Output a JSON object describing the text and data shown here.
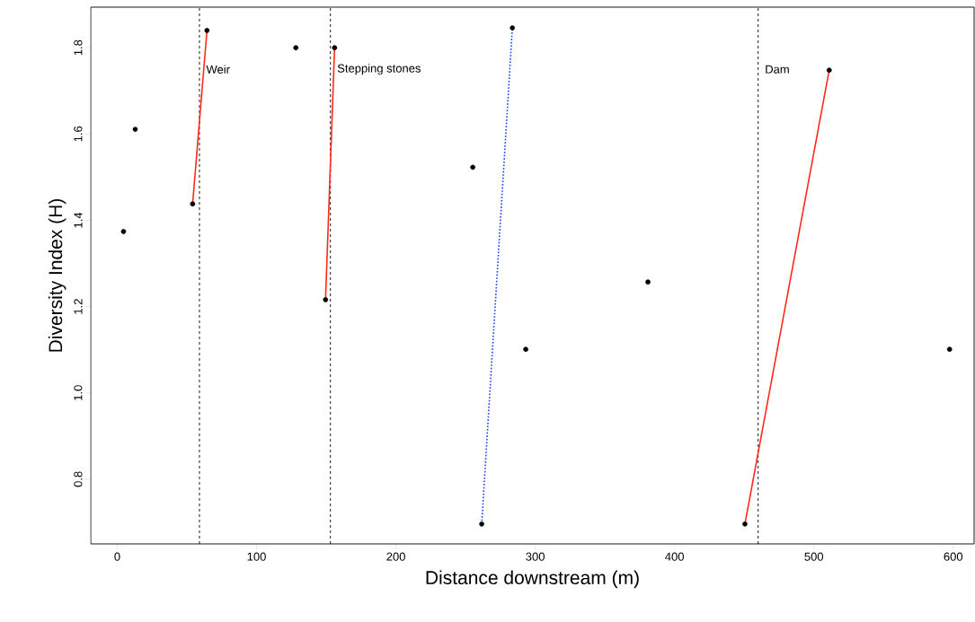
{
  "chart_data": {
    "type": "scatter",
    "xlabel": "Distance downstream (m)",
    "ylabel": "Diversity Index (H)",
    "xlim": [
      -19,
      615
    ],
    "ylim": [
      0.65,
      1.894
    ],
    "xticks": [
      0,
      100,
      200,
      300,
      400,
      500,
      600
    ],
    "yticks": [
      {
        "value": 0.8,
        "label": "0.8"
      },
      {
        "value": 1.0,
        "label": "1.0"
      },
      {
        "value": 1.2,
        "label": "1.2"
      },
      {
        "value": 1.4,
        "label": "1.4"
      },
      {
        "value": 1.6,
        "label": "1.6"
      },
      {
        "value": 1.8,
        "label": "1.8"
      }
    ],
    "series": [
      {
        "marker": "circle",
        "color": "#000000",
        "x": [
          4.5,
          12.9,
          54.1,
          64.4,
          128.2,
          149.5,
          156,
          255.2,
          261.6,
          283.6,
          293.2,
          380.9,
          450.5,
          511,
          597.4
        ],
        "values": [
          1.374,
          1.611,
          1.438,
          1.84,
          1.8,
          1.216,
          1.8,
          1.523,
          0.696,
          1.846,
          1.101,
          1.257,
          0.696,
          1.748,
          1.101
        ]
      },
      {
        "type": "line",
        "color": "#ff2a1a",
        "line_style": "solid",
        "x": [
          54.1,
          64.4
        ],
        "values": [
          1.438,
          1.84
        ]
      },
      {
        "type": "line",
        "color": "#ff2a1a",
        "line_style": "solid",
        "x": [
          149.5,
          156
        ],
        "values": [
          1.216,
          1.8
        ]
      },
      {
        "type": "line",
        "color": "#1a3cff",
        "line_style": "dotted",
        "x": [
          261.6,
          283.6
        ],
        "values": [
          0.696,
          1.846
        ]
      },
      {
        "type": "line",
        "color": "#ff2a1a",
        "line_style": "solid",
        "x": [
          450.5,
          511
        ],
        "values": [
          0.696,
          1.748
        ]
      }
    ],
    "ref_lines": [
      {
        "axis": "x",
        "value": 59,
        "label": "Weir",
        "color": "#000000",
        "line_style": "dashed"
      },
      {
        "axis": "x",
        "value": 153,
        "label": "Stepping stones",
        "color": "#000000",
        "line_style": "dashed"
      },
      {
        "axis": "x",
        "value": 460,
        "label": "Dam",
        "color": "#000000",
        "line_style": "dashed"
      }
    ]
  }
}
